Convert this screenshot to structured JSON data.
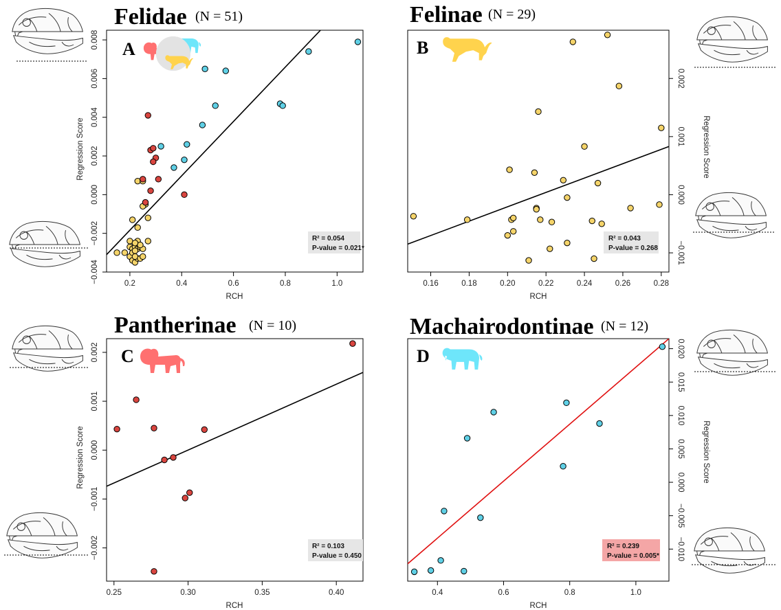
{
  "colors": {
    "felinae": "#F5D46A",
    "pantherinae": "#D9453F",
    "machairodontinae": "#5FD0E6",
    "regression_default": "#000000",
    "regression_significant": "#E01010",
    "statbox_default": "#E6E6E6",
    "statbox_significant": "#F4A6A6",
    "silhouette_felinae": "#FFD34D",
    "silhouette_pantherinae": "#FF7070",
    "silhouette_machairodontinae": "#6EE6FA"
  },
  "icons": [
    "cat-skull-icon",
    "lion-silhouette-icon",
    "puma-silhouette-icon",
    "sabertooth-silhouette-icon"
  ],
  "chart_data": [
    {
      "type": "scatter",
      "panel": "A",
      "title": "Felidae",
      "subtitle": "(N = 51)",
      "xlabel": "RCH",
      "ylabel": "Regression Score",
      "y_axis_side": "left",
      "xlim": [
        0.11,
        1.1
      ],
      "ylim": [
        -0.004,
        0.0085
      ],
      "xticks": [
        0.2,
        0.4,
        0.6,
        0.8,
        1.0
      ],
      "xtick_labels": [
        "0.2",
        "0.4",
        "0.6",
        "0.8",
        "1.0"
      ],
      "yticks": [
        -0.004,
        -0.002,
        0.0,
        0.002,
        0.004,
        0.006,
        0.008
      ],
      "ytick_labels": [
        "−0.004",
        "−0.002",
        "0.000",
        "0.002",
        "0.004",
        "0.006",
        "0.008"
      ],
      "regression": {
        "x": [
          0.11,
          0.95
        ],
        "y": [
          -0.0031,
          0.0087
        ],
        "significant": true
      },
      "stats": {
        "r2": "R² = 0.054",
        "p": "P-value = 0.021*"
      },
      "icon_group": "all-three",
      "series": [
        {
          "name": "",
          "group": "felinae",
          "points": [
            [
              0.15,
              -0.003
            ],
            [
              0.18,
              -0.003
            ],
            [
              0.2,
              -0.0032
            ],
            [
              0.21,
              -0.0034
            ],
            [
              0.22,
              -0.0035
            ],
            [
              0.23,
              -0.0033
            ],
            [
              0.2,
              -0.0027
            ],
            [
              0.21,
              -0.0028
            ],
            [
              0.22,
              -0.0027
            ],
            [
              0.23,
              -0.0028
            ],
            [
              0.24,
              -0.0027
            ],
            [
              0.25,
              -0.0028
            ],
            [
              0.2,
              -0.0024
            ],
            [
              0.23,
              -0.0024
            ],
            [
              0.27,
              -0.0024
            ],
            [
              0.24,
              -0.0026
            ],
            [
              0.21,
              -0.003
            ],
            [
              0.22,
              -0.0032
            ],
            [
              0.21,
              -0.0013
            ],
            [
              0.23,
              -0.0017
            ],
            [
              0.27,
              -0.0012
            ],
            [
              0.26,
              -0.0005
            ],
            [
              0.25,
              -0.0006
            ],
            [
              0.23,
              0.0007
            ],
            [
              0.25,
              0.0007
            ],
            [
              0.22,
              -0.0029
            ],
            [
              0.24,
              -0.0033
            ],
            [
              0.25,
              -0.0032
            ],
            [
              0.22,
              -0.0025
            ]
          ]
        },
        {
          "name": "",
          "group": "pantherinae",
          "points": [
            [
              0.27,
              0.0041
            ],
            [
              0.28,
              0.0023
            ],
            [
              0.29,
              0.0024
            ],
            [
              0.3,
              0.0019
            ],
            [
              0.29,
              0.0017
            ],
            [
              0.25,
              0.0008
            ],
            [
              0.31,
              0.0008
            ],
            [
              0.28,
              0.0002
            ],
            [
              0.26,
              -0.0004
            ],
            [
              0.41,
              0.0
            ]
          ]
        },
        {
          "name": "",
          "group": "machairodontinae",
          "points": [
            [
              0.32,
              0.0025
            ],
            [
              0.37,
              0.0014
            ],
            [
              0.41,
              0.0018
            ],
            [
              0.42,
              0.0026
            ],
            [
              0.48,
              0.0036
            ],
            [
              0.49,
              0.0065
            ],
            [
              0.53,
              0.0046
            ],
            [
              0.57,
              0.0064
            ],
            [
              0.78,
              0.0047
            ],
            [
              0.79,
              0.0046
            ],
            [
              0.89,
              0.0074
            ],
            [
              1.08,
              0.0079
            ]
          ]
        }
      ]
    },
    {
      "type": "scatter",
      "panel": "B",
      "title": "Felinae",
      "subtitle": "(N = 29)",
      "xlabel": "RCH",
      "ylabel": "Regression Score",
      "y_axis_side": "right",
      "xlim": [
        0.148,
        0.284
      ],
      "ylim": [
        -0.00133,
        0.00283
      ],
      "xticks": [
        0.16,
        0.18,
        0.2,
        0.22,
        0.24,
        0.26,
        0.28
      ],
      "xtick_labels": [
        "0.16",
        "0.18",
        "0.20",
        "0.22",
        "0.24",
        "0.26",
        "0.28"
      ],
      "yticks": [
        -0.001,
        0.0,
        0.001,
        0.002
      ],
      "ytick_labels": [
        "−0.001",
        "0.000",
        "0.001",
        "0.002"
      ],
      "regression": {
        "x": [
          0.148,
          0.284
        ],
        "y": [
          -0.00085,
          0.00083
        ],
        "significant": false
      },
      "stats": {
        "r2": "R² = 0.043",
        "p": "P-value = 0.268"
      },
      "icon_group": "felinae",
      "series": [
        {
          "name": "",
          "group": "felinae",
          "points": [
            [
              0.151,
              -0.00037
            ],
            [
              0.179,
              -0.00043
            ],
            [
              0.2,
              -0.0007
            ],
            [
              0.201,
              0.00043
            ],
            [
              0.202,
              -0.00043
            ],
            [
              0.203,
              -0.0004
            ],
            [
              0.203,
              -0.00063
            ],
            [
              0.214,
              0.00038
            ],
            [
              0.215,
              -0.00023
            ],
            [
              0.215,
              -0.00025
            ],
            [
              0.216,
              0.00143
            ],
            [
              0.217,
              -0.00043
            ],
            [
              0.222,
              -0.00093
            ],
            [
              0.223,
              -0.00047
            ],
            [
              0.229,
              0.00025
            ],
            [
              0.231,
              -5e-05
            ],
            [
              0.231,
              -0.00083
            ],
            [
              0.234,
              0.00263
            ],
            [
              0.24,
              0.00083
            ],
            [
              0.244,
              -0.00045
            ],
            [
              0.245,
              -0.0011
            ],
            [
              0.247,
              0.0002
            ],
            [
              0.249,
              -0.0005
            ],
            [
              0.252,
              0.00275
            ],
            [
              0.258,
              0.00187
            ],
            [
              0.264,
              -0.00023
            ],
            [
              0.279,
              -0.00017
            ],
            [
              0.28,
              0.00115
            ],
            [
              0.211,
              -0.00113
            ]
          ]
        }
      ]
    },
    {
      "type": "scatter",
      "panel": "C",
      "title": "Pantherinae",
      "subtitle": "(N = 10)",
      "xlabel": "RCH",
      "ylabel": "Regression Score",
      "y_axis_side": "left",
      "xlim": [
        0.245,
        0.418
      ],
      "ylim": [
        -0.00268,
        0.00228
      ],
      "xticks": [
        0.25,
        0.3,
        0.35,
        0.4
      ],
      "xtick_labels": [
        "0.25",
        "0.30",
        "0.35",
        "0.40"
      ],
      "yticks": [
        -0.002,
        -0.001,
        0.0,
        0.001,
        0.002
      ],
      "ytick_labels": [
        "−0.002",
        "−0.001",
        "0.000",
        "0.001",
        "0.002"
      ],
      "regression": {
        "x": [
          0.245,
          0.418
        ],
        "y": [
          -0.00074,
          0.00159
        ],
        "significant": false
      },
      "stats": {
        "r2": "R² = 0.103",
        "p": "P-value = 0.450"
      },
      "icon_group": "pantherinae",
      "series": [
        {
          "name": "",
          "group": "pantherinae",
          "points": [
            [
              0.252,
              0.00043
            ],
            [
              0.265,
              0.00103
            ],
            [
              0.277,
              0.00045
            ],
            [
              0.284,
              -0.0002
            ],
            [
              0.29,
              -0.00015
            ],
            [
              0.298,
              -0.00098
            ],
            [
              0.301,
              -0.00087
            ],
            [
              0.311,
              0.00042
            ],
            [
              0.277,
              -0.00248
            ],
            [
              0.411,
              0.00218
            ]
          ]
        }
      ]
    },
    {
      "type": "scatter",
      "panel": "D",
      "title": "Machairodontinae",
      "subtitle": "(N = 12)",
      "xlabel": "RCH",
      "ylabel": "Regression Score",
      "y_axis_side": "right",
      "xlim": [
        0.31,
        1.1
      ],
      "ylim": [
        -0.0148,
        0.0215
      ],
      "xticks": [
        0.4,
        0.6,
        0.8,
        1.0
      ],
      "xtick_labels": [
        "0.4",
        "0.6",
        "0.8",
        "1.0"
      ],
      "yticks": [
        -0.01,
        -0.005,
        0.0,
        0.005,
        0.01,
        0.015,
        0.02
      ],
      "ytick_labels": [
        "−0.010",
        "−0.005",
        "0.000",
        "0.005",
        "0.010",
        "0.015",
        "0.020"
      ],
      "regression": {
        "x": [
          0.31,
          1.1
        ],
        "y": [
          -0.0122,
          0.0215
        ],
        "significant": true
      },
      "stats": {
        "r2": "R² = 0.239",
        "p": "P-value = 0.005*"
      },
      "icon_group": "machairodontinae",
      "series": [
        {
          "name": "",
          "group": "machairodontinae",
          "points": [
            [
              0.33,
              -0.0134
            ],
            [
              0.38,
              -0.0132
            ],
            [
              0.41,
              -0.0117
            ],
            [
              0.42,
              -0.0043
            ],
            [
              0.48,
              -0.0133
            ],
            [
              0.49,
              0.0066
            ],
            [
              0.53,
              -0.0053
            ],
            [
              0.57,
              0.0105
            ],
            [
              0.78,
              0.0024
            ],
            [
              0.79,
              0.0119
            ],
            [
              0.89,
              0.0088
            ],
            [
              1.08,
              0.0203
            ]
          ]
        }
      ]
    }
  ]
}
